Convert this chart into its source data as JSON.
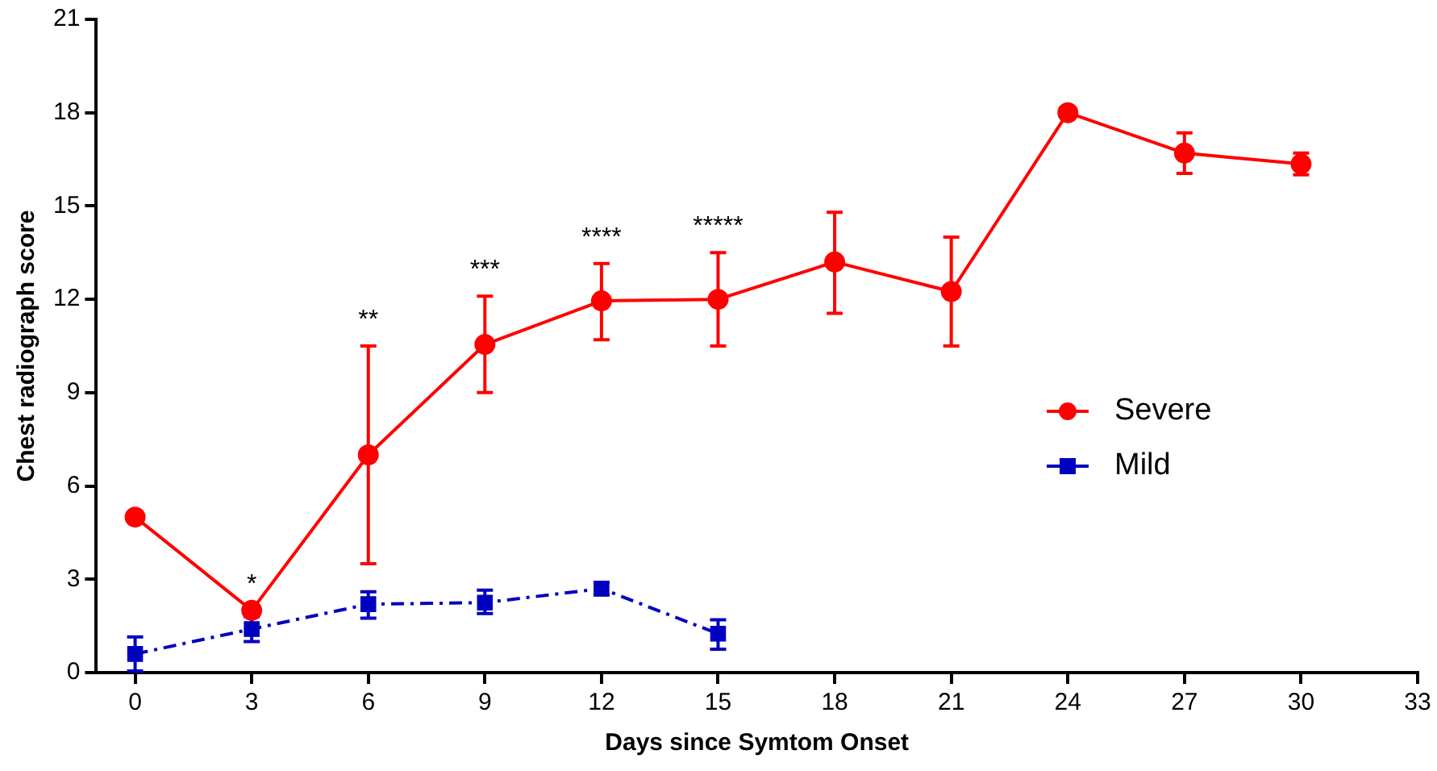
{
  "chart_data": {
    "type": "line",
    "xlabel": "Days since Symtom Onset",
    "ylabel": "Chest radiograph score",
    "x": [
      0,
      3,
      6,
      9,
      12,
      15,
      18,
      21,
      24,
      27,
      30
    ],
    "xlim": [
      -1,
      33
    ],
    "xticks": [
      0,
      3,
      6,
      9,
      12,
      15,
      18,
      21,
      24,
      27,
      30,
      33
    ],
    "ylim": [
      0,
      21
    ],
    "yticks": [
      0,
      3,
      6,
      9,
      12,
      15,
      18,
      21
    ],
    "grid": false,
    "legend": "right",
    "series": [
      {
        "name": "Severe",
        "color": "#ff0000",
        "marker": "circle",
        "line_style": "solid",
        "values": [
          5.0,
          2.0,
          7.0,
          10.55,
          11.95,
          12.0,
          13.2,
          12.25,
          18.0,
          16.7,
          16.35
        ],
        "errors": [
          null,
          null,
          [
            3.5,
            10.5
          ],
          [
            9.0,
            12.1
          ],
          [
            10.7,
            13.15
          ],
          [
            10.5,
            13.5
          ],
          [
            11.55,
            14.8
          ],
          [
            10.5,
            14.0
          ],
          null,
          [
            16.05,
            17.35
          ],
          [
            16.0,
            16.7
          ]
        ]
      },
      {
        "name": "Mild",
        "color": "#0000c0",
        "marker": "square",
        "line_style": "dashed",
        "x": [
          0,
          3,
          6,
          9,
          12,
          15
        ],
        "values": [
          0.6,
          1.4,
          2.2,
          2.25,
          2.7,
          1.25
        ],
        "errors": [
          [
            0.05,
            1.15
          ],
          [
            1.0,
            1.8
          ],
          [
            1.75,
            2.6
          ],
          [
            1.9,
            2.65
          ],
          [
            2.5,
            2.9
          ],
          [
            0.75,
            1.7
          ]
        ]
      }
    ],
    "annotations": [
      {
        "text": "*",
        "x": 3,
        "y": 2.0
      },
      {
        "text": "**",
        "x": 6,
        "y": 10.5
      },
      {
        "text": "***",
        "x": 9,
        "y": 12.1
      },
      {
        "text": "****",
        "x": 12,
        "y": 13.15
      },
      {
        "text": "*****",
        "x": 15,
        "y": 13.5
      }
    ]
  }
}
